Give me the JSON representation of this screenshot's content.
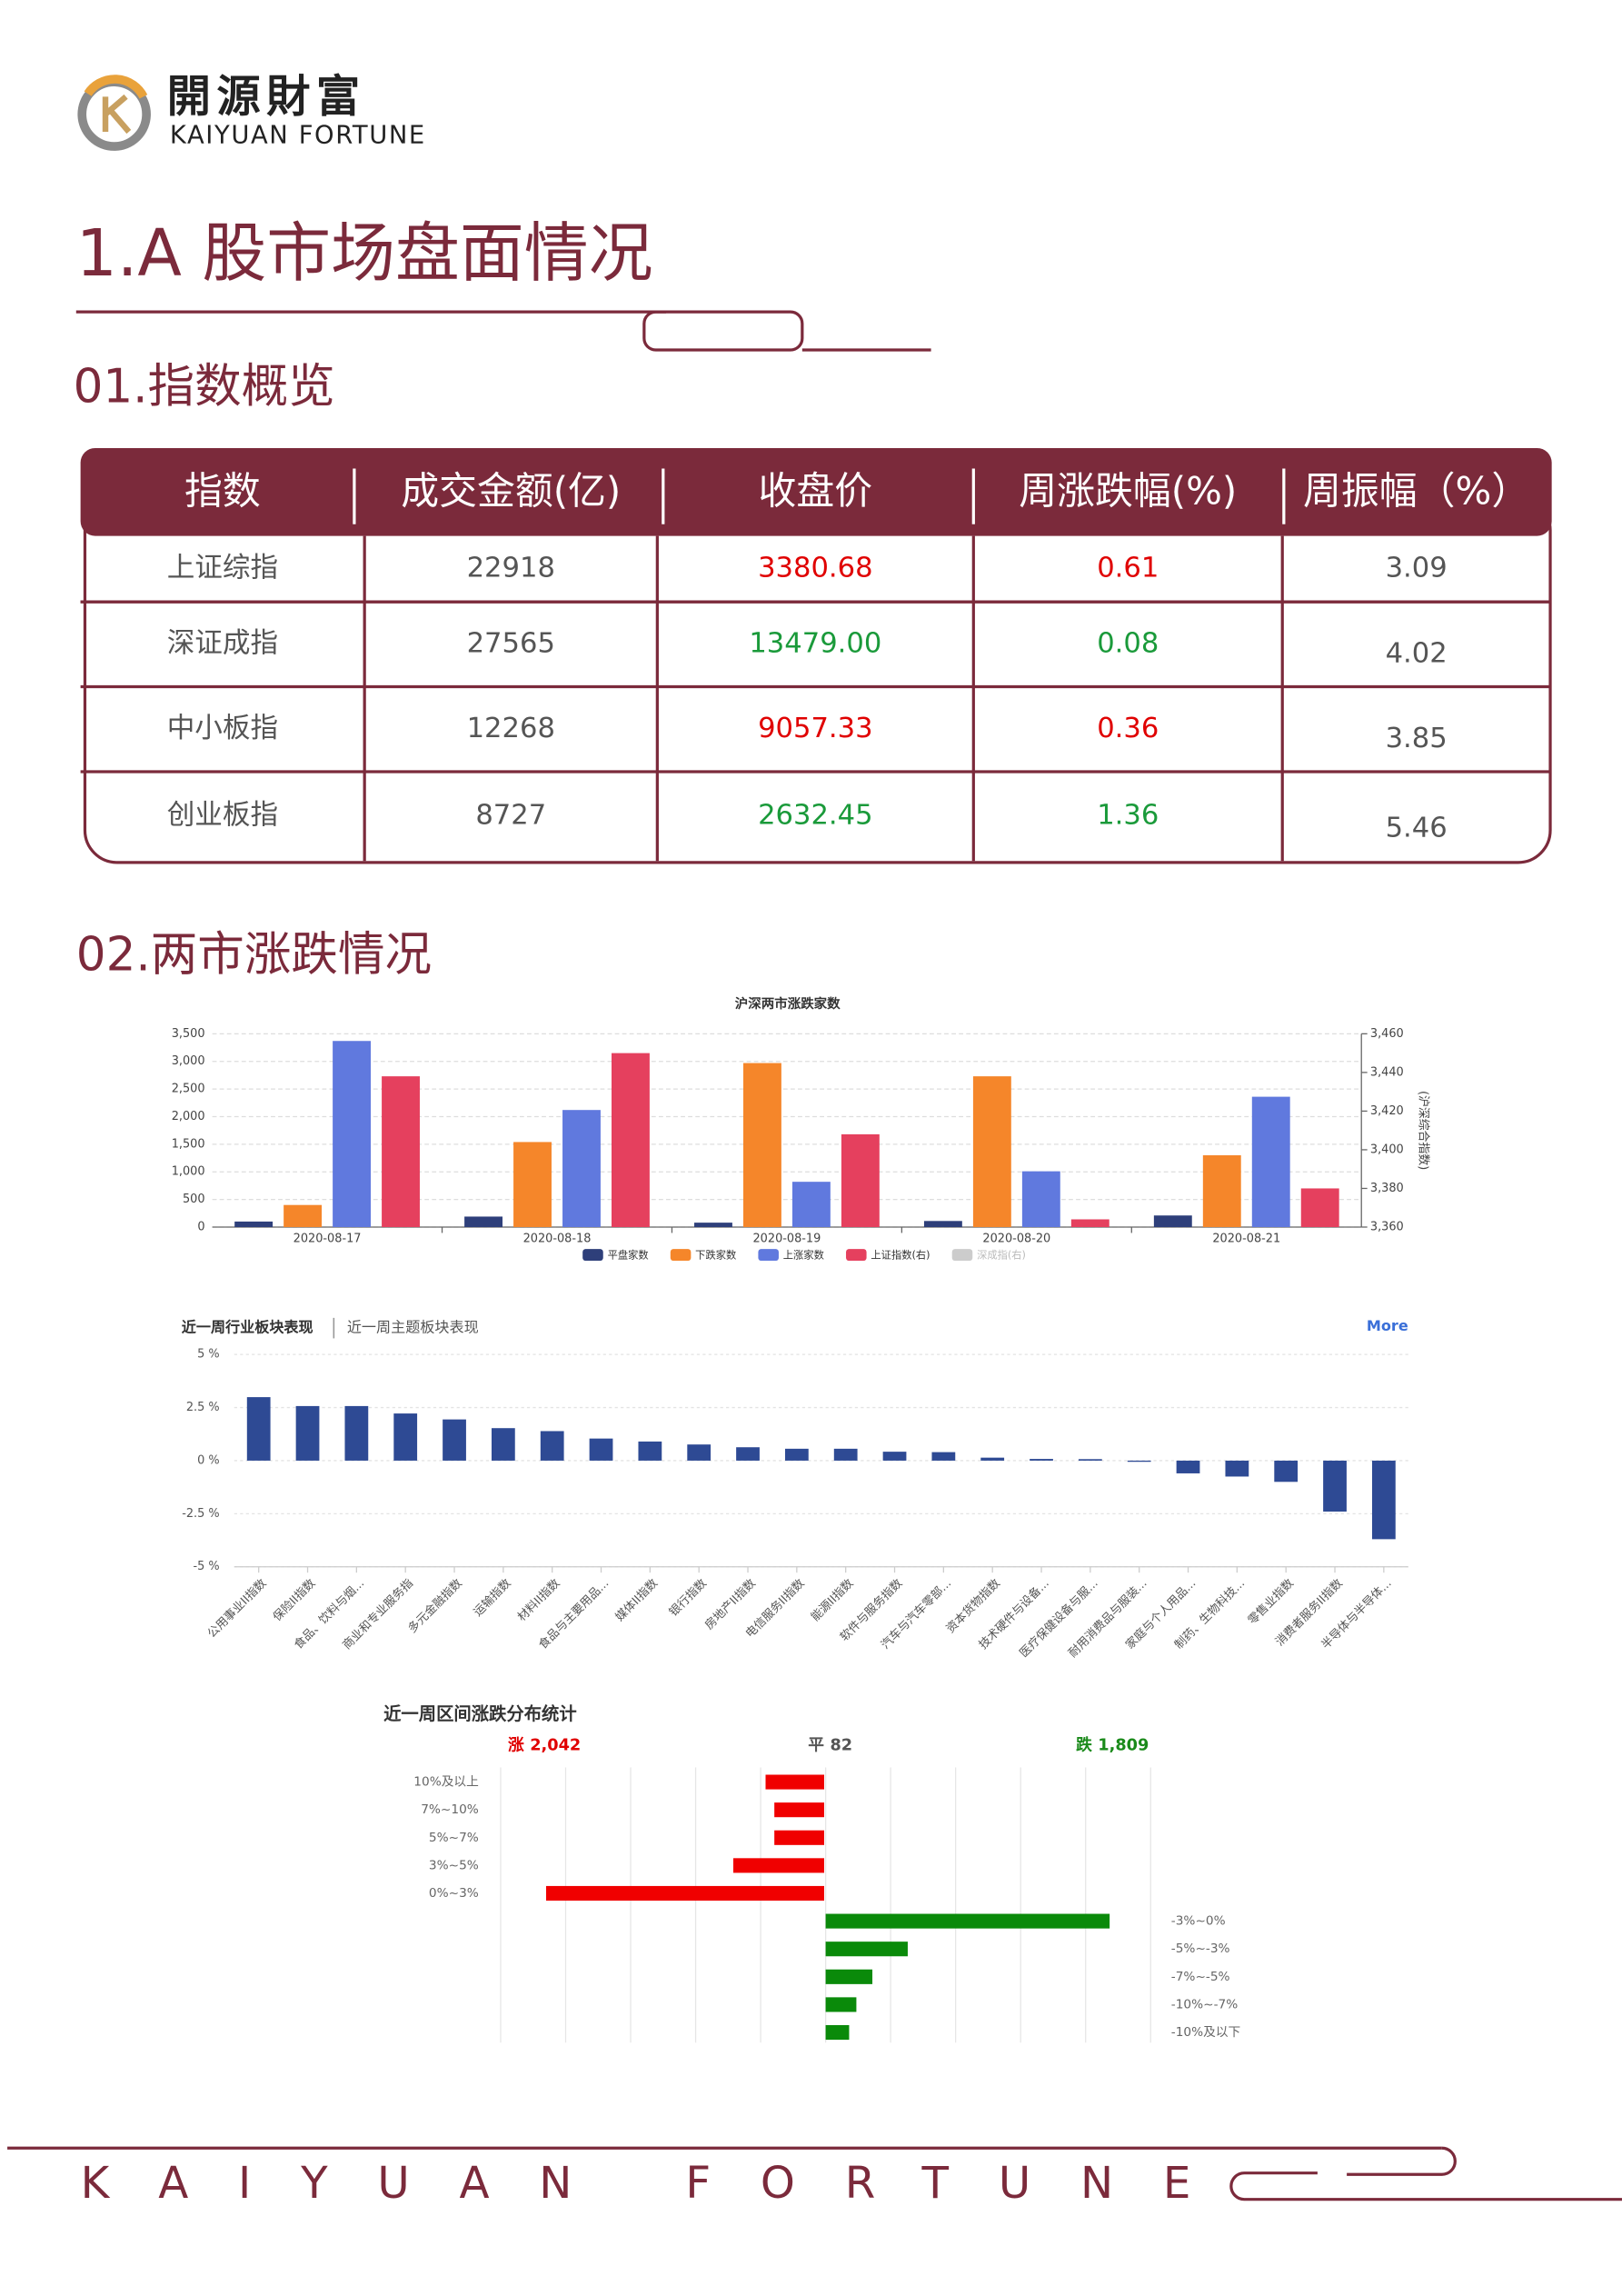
{
  "header": {
    "logo_cn": "開源財富",
    "logo_en": "KAIYUAN FORTUNE"
  },
  "title": "1.A 股市场盘面情况",
  "section1": "01.指数概览",
  "table": {
    "columns": [
      "指数",
      "成交金额(亿)",
      "收盘价",
      "周涨跌幅(%)",
      "周振幅（%）"
    ],
    "rows": [
      [
        "上证综指",
        "22918",
        "3380.68",
        "0.61",
        "3.09"
      ],
      [
        "深证成指",
        "27565",
        "13479.00",
        "0.08",
        "4.02"
      ],
      [
        "中小板指",
        "12268",
        "9057.33",
        "0.36",
        "3.85"
      ],
      [
        "创业板指",
        "8727",
        "2632.45",
        "1.36",
        "5.46"
      ]
    ],
    "row_colors": [
      "#e00000",
      "#1a9a3a",
      "#e00000",
      "#1a9a3a"
    ]
  },
  "section2": "02.两市涨跌情况",
  "chart_data": [
    {
      "type": "grouped_bar",
      "title": "沪深两市涨跌家数",
      "categories": [
        "2020-08-17",
        "2020-08-18",
        "2020-08-19",
        "2020-08-20",
        "2020-08-21"
      ],
      "series": [
        {
          "name": "平盘家数",
          "color": "#2e3f7a",
          "values": [
            100,
            190,
            80,
            110,
            210
          ]
        },
        {
          "name": "下跌家数",
          "color": "#f5862a",
          "values": [
            400,
            1540,
            2970,
            2730,
            1300
          ]
        },
        {
          "name": "上涨家数",
          "color": "#6079de",
          "values": [
            3370,
            2120,
            820,
            1010,
            2360
          ]
        },
        {
          "name": "上证指数(右)",
          "color": "#e5405e",
          "axis": "y2",
          "values": [
            3438,
            3450,
            3408,
            3364,
            3380
          ]
        },
        {
          "name": "深成指(右)",
          "color": "#cccccc",
          "axis": "y2",
          "values": [
            null,
            null,
            null,
            null,
            null
          ]
        }
      ],
      "ylim": [
        0,
        3500
      ],
      "yticks": [
        0,
        500,
        {
          "value": 1000,
          "label": "1,000"
        },
        {
          "value": 1500,
          "label": "1,500"
        },
        {
          "value": 2000,
          "label": "2,000"
        },
        {
          "value": 2500,
          "label": "2,500"
        },
        {
          "value": 3000,
          "label": "3,000"
        },
        {
          "value": 3500,
          "label": "3,500"
        }
      ],
      "y2lim": [
        3360,
        3460
      ],
      "y2ticks": [
        {
          "value": 3360,
          "label": "3,360"
        },
        {
          "value": 3380,
          "label": "3,380"
        },
        {
          "value": 3400,
          "label": "3,400"
        },
        {
          "value": 3420,
          "label": "3,420"
        },
        {
          "value": 3440,
          "label": "3,440"
        },
        {
          "value": 3460,
          "label": "3,460"
        }
      ],
      "y2label": "(沪深综合指数)",
      "grid": true,
      "legend": "bottom"
    },
    {
      "type": "bar",
      "tabs": [
        "近一周行业板块表现",
        "近一周主题板块表现"
      ],
      "more": "More",
      "categories": [
        "公用事业II指数",
        "保险II指数",
        "食品、饮料与烟...",
        "商业和专业服务指",
        "多元金融指数",
        "运输指数",
        "材料II指数",
        "食品与主要用品...",
        "媒体II指数",
        "银行指数",
        "房地产II指数",
        "电信服务II指数",
        "能源II指数",
        "软件与服务指数",
        "汽车与汽车零部...",
        "资本货物指数",
        "技术硬件与设备...",
        "医疗保健设备与服...",
        "耐用消费品与服装...",
        "家庭与个人用品...",
        "制药、生物科技...",
        "零售业指数",
        "消费者服务II指数",
        "半导体与半导体..."
      ],
      "values": [
        2.99,
        2.57,
        2.57,
        2.22,
        1.94,
        1.53,
        1.39,
        1.04,
        0.9,
        0.76,
        0.63,
        0.56,
        0.56,
        0.42,
        0.4,
        0.14,
        0.08,
        0.07,
        -0.05,
        -0.6,
        -0.75,
        -1.0,
        -2.4,
        -3.7
      ],
      "color": "#2e4a94",
      "ylim": [
        -5,
        5
      ],
      "yticks": [
        {
          "value": -5,
          "label": "-5 %"
        },
        {
          "value": -2.5,
          "label": "-2.5 %"
        },
        {
          "value": 0,
          "label": "0 %"
        },
        {
          "value": 2.5,
          "label": "2.5 %"
        },
        {
          "value": 5,
          "label": "5 %"
        }
      ],
      "grid": true
    },
    {
      "type": "diverging_bar",
      "title": "近一周区间涨跌分布统计",
      "summary": [
        {
          "name": "涨",
          "value_label": "2,042",
          "color": "#e00000"
        },
        {
          "name": "平",
          "value_label": "82",
          "color": "#555555"
        },
        {
          "name": "跌",
          "value_label": "1,809",
          "color": "#1a8a1a"
        }
      ],
      "series": [
        {
          "name": "涨",
          "color": "#f00000",
          "categories": [
            "10%及以上",
            "7%~10%",
            "5%~7%",
            "3%~5%",
            "0%~3%"
          ],
          "values": [
            227,
            193,
            193,
            352,
            1077
          ]
        },
        {
          "name": "跌",
          "color": "#0a8a0a",
          "categories": [
            "-3%~0%",
            "-5%~-3%",
            "-7%~-5%",
            "-10%~-7%",
            "-10%及以下"
          ],
          "values": [
            1100,
            318,
            181,
            119,
            91
          ]
        }
      ],
      "grid": true
    }
  ],
  "footer": "KAIYUAN FORTUNE"
}
